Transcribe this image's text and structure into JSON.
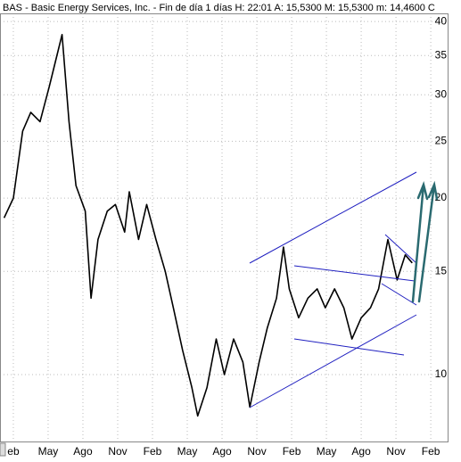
{
  "chart_data": {
    "type": "line",
    "title": "BAS - Basic Energy Services, Inc. - Fin de día 1 días  H: 22:01  A: 15,5300  M: 15,5300  m: 14,4600  C",
    "log_scale_y": true,
    "grid": true,
    "color": "#000000",
    "x": [
      -0.8,
      0,
      0.8,
      1.5,
      2.3,
      3.1,
      3.6,
      4.2,
      4.8,
      5.4,
      6.2,
      6.7,
      7.3,
      8.1,
      8.8,
      9.6,
      10,
      10.8,
      11.5,
      12.3,
      13.1,
      13.8,
      14.6,
      15.4,
      15.9,
      16.7,
      17.5,
      18.2,
      19,
      19.8,
      20.4,
      21.2,
      21.9,
      22.7,
      23.3,
      23.8,
      24.6,
      25.4,
      26.2,
      26.9,
      27.7,
      28.5,
      29.2,
      30,
      30.8,
      31.5,
      32.3,
      33.1,
      33.8,
      34.4
    ],
    "values": [
      18.5,
      20,
      26,
      28,
      27,
      31,
      34,
      38,
      27,
      21,
      19,
      13.5,
      17,
      19,
      19.5,
      17.5,
      20.5,
      17,
      19.5,
      17,
      15,
      13,
      11,
      9.5,
      8.5,
      9.5,
      11.5,
      10,
      11.5,
      10.5,
      8.8,
      10.5,
      12,
      13.5,
      16.5,
      14,
      12.5,
      13.5,
      14,
      13,
      14,
      13,
      11.5,
      12.5,
      13,
      14,
      17,
      14.5,
      16,
      15.5
    ],
    "xlim": [
      -1.15,
      37.3
    ],
    "xticks": [
      {
        "value": 0,
        "label": "eb"
      },
      {
        "value": 3,
        "label": "May"
      },
      {
        "value": 6,
        "label": "Ago"
      },
      {
        "value": 9,
        "label": "Nov"
      },
      {
        "value": 12,
        "label": "Feb"
      },
      {
        "value": 15,
        "label": "May"
      },
      {
        "value": 18,
        "label": "Ago"
      },
      {
        "value": 21,
        "label": "Nov"
      },
      {
        "value": 24,
        "label": "Feb"
      },
      {
        "value": 27,
        "label": "May"
      },
      {
        "value": 30,
        "label": "Ago"
      },
      {
        "value": 33,
        "label": "Nov"
      },
      {
        "value": 36,
        "label": "Feb"
      }
    ],
    "ylim": [
      7.69,
      41.3
    ],
    "yticks": [
      10,
      15,
      20,
      25,
      30,
      35,
      40
    ]
  }
}
